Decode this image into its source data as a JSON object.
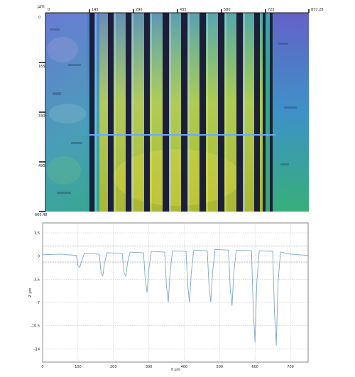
{
  "top_image": {
    "unit": "μm",
    "x_ticks": [
      "0",
      "145",
      "290",
      "435",
      "580",
      "725",
      "877.28"
    ],
    "y_ticks": [
      "0",
      "165",
      "330",
      "495",
      "660.48"
    ],
    "groove_count": 12
  },
  "chart_data": {
    "type": "line",
    "xlabel": "X μm",
    "ylabel": "Z μm",
    "xlim": [
      0,
      750
    ],
    "ylim": [
      -16,
      5
    ],
    "x_ticks": [
      0,
      100,
      200,
      300,
      400,
      500,
      600,
      700
    ],
    "y_ticks": [
      3.5,
      0,
      -3.5,
      -7,
      -10.5,
      -14
    ],
    "y_tick_labels": [
      "3,5",
      "0",
      "-3,5",
      "-7",
      "-10,5",
      "-14"
    ],
    "reference_lines": [
      1.5,
      -0.9
    ],
    "series": [
      {
        "x": [
          0,
          50,
          95,
          100,
          105,
          110,
          118,
          160,
          165,
          170,
          175,
          182,
          225,
          230,
          235,
          240,
          247,
          285,
          290,
          295,
          300,
          307,
          345,
          350,
          355,
          360,
          367,
          405,
          410,
          415,
          420,
          427,
          465,
          470,
          475,
          480,
          487,
          525,
          530,
          535,
          540,
          547,
          590,
          595,
          600,
          605,
          612,
          650,
          655,
          660,
          665,
          672,
          700,
          750
        ],
        "y": [
          0.2,
          0.3,
          0.1,
          -1.5,
          -1.7,
          -0.8,
          0.4,
          0.3,
          -2.5,
          -3.0,
          -1.0,
          0.5,
          0.4,
          -2.5,
          -3.0,
          -1.0,
          0.6,
          0.5,
          -3.5,
          -5.5,
          -2.0,
          0.7,
          0.6,
          -4.5,
          -7.0,
          -2.5,
          0.8,
          0.7,
          -4.5,
          -7.0,
          -2.5,
          0.9,
          0.8,
          -4.5,
          -7.0,
          -2.5,
          1.0,
          0.9,
          -5.0,
          -7.5,
          -2.5,
          0.9,
          0.8,
          -8.0,
          -13.0,
          -4.0,
          0.8,
          0.7,
          -8.5,
          -13.5,
          -4.0,
          0.6,
          0.3,
          0.1
        ]
      }
    ]
  }
}
